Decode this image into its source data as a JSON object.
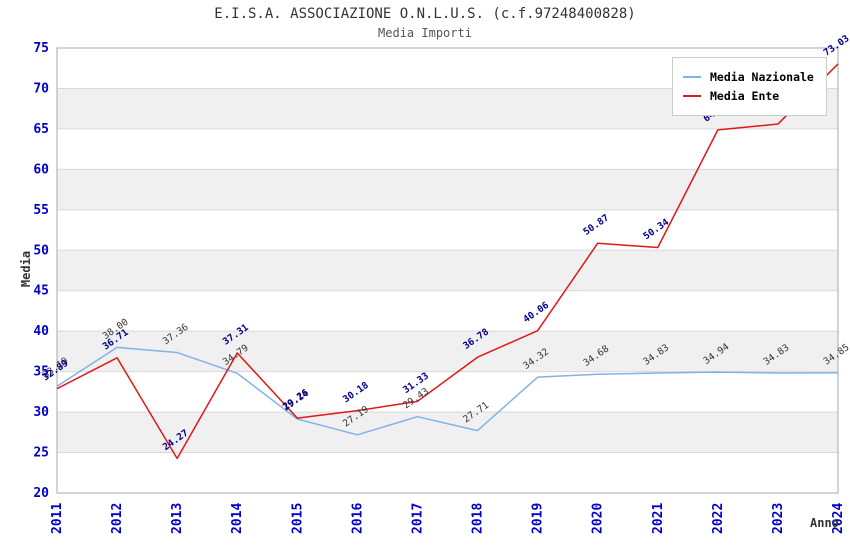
{
  "header": {
    "title": "E.I.S.A. ASSOCIAZIONE O.N.L.U.S. (c.f.97248400828)",
    "subtitle": "Media Importi"
  },
  "chart_data": {
    "type": "line",
    "x": [
      "2011",
      "2012",
      "2013",
      "2014",
      "2015",
      "2016",
      "2017",
      "2018",
      "2019",
      "2020",
      "2021",
      "2022",
      "2023",
      "2024"
    ],
    "series": [
      {
        "name": "Media Nazionale",
        "color": "#7fb3e6",
        "label_color": "#333333",
        "values": [
          33.19,
          38.0,
          37.36,
          34.79,
          29.14,
          27.19,
          29.43,
          27.71,
          34.32,
          34.68,
          34.83,
          34.94,
          34.83,
          34.85
        ]
      },
      {
        "name": "Media Ente",
        "color": "#e01818",
        "label_color": "#00008b",
        "values": [
          32.89,
          36.71,
          24.27,
          37.31,
          29.26,
          30.18,
          31.33,
          36.78,
          40.06,
          50.87,
          50.34,
          64.88,
          65.6,
          73.03
        ]
      }
    ],
    "xlabel": "Anno",
    "ylabel": "Media",
    "ylim": [
      20,
      75
    ],
    "ytick_step": 5,
    "legend_position": "top-right",
    "grid": "horizontal-bands",
    "band_color": "#f0f0f0",
    "grid_color": "#d9d9d9",
    "plot_border_color": "#aaaaaa",
    "tick_color": "#0000cc",
    "axis_label_color": "#333333",
    "label_decimals": 2
  }
}
